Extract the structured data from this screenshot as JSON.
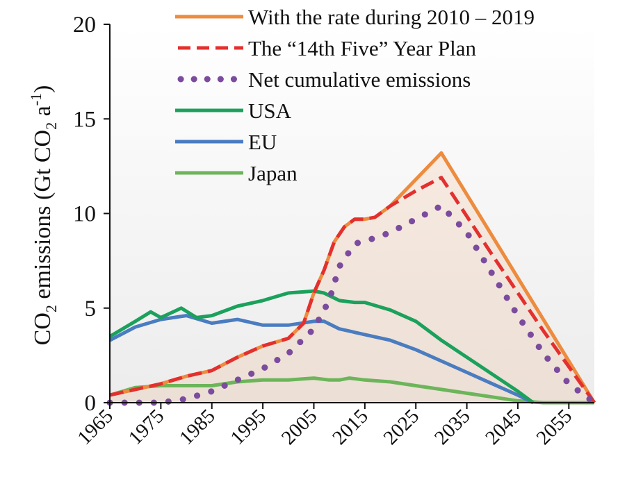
{
  "chart_data": {
    "type": "line",
    "ylabel": {
      "prefix": "CO",
      "sub": "2",
      "mid": " emissions (Gt CO",
      "sub2": "2",
      "mid2": " a",
      "sup": "-1",
      "suffix": ")"
    },
    "xlim": [
      1965,
      2060
    ],
    "ylim": [
      0,
      20
    ],
    "x_ticks": [
      1965,
      1975,
      1985,
      1995,
      2005,
      2015,
      2025,
      2035,
      2045,
      2055
    ],
    "y_ticks": [
      0,
      5,
      10,
      15,
      20
    ],
    "legend_position": "top",
    "series": [
      {
        "name": "With the rate during 2010 – 2019",
        "color": "#ED8B3E",
        "style": "solid",
        "filled": true,
        "x": [
          1965,
          1970,
          1975,
          1980,
          1985,
          1990,
          1995,
          2000,
          2003,
          2005,
          2007,
          2009,
          2011,
          2013,
          2015,
          2017,
          2020,
          2025,
          2030,
          2040,
          2050,
          2060
        ],
        "y": [
          0.4,
          0.7,
          1.0,
          1.4,
          1.7,
          2.4,
          3.0,
          3.4,
          4.2,
          5.8,
          7.0,
          8.5,
          9.3,
          9.7,
          9.7,
          9.8,
          10.4,
          11.8,
          13.2,
          8.8,
          4.4,
          0.0
        ]
      },
      {
        "name": "The “14th Five” Year Plan",
        "color": "#E3302E",
        "style": "dashed",
        "x": [
          1965,
          1970,
          1975,
          1980,
          1985,
          1990,
          1995,
          2000,
          2003,
          2005,
          2007,
          2009,
          2011,
          2013,
          2015,
          2017,
          2020,
          2025,
          2030,
          2040,
          2050,
          2060
        ],
        "y": [
          0.4,
          0.7,
          1.0,
          1.4,
          1.7,
          2.4,
          3.0,
          3.4,
          4.2,
          5.8,
          7.0,
          8.5,
          9.3,
          9.7,
          9.7,
          9.8,
          10.4,
          11.2,
          11.9,
          7.8,
          3.8,
          0.0
        ]
      },
      {
        "name": "Net cumulative emissions",
        "color": "#7B4B9E",
        "style": "dotted",
        "x": [
          1965,
          1970,
          1975,
          1980,
          1985,
          1990,
          1995,
          2000,
          2005,
          2008,
          2010,
          2013,
          2017,
          2020,
          2025,
          2030,
          2035,
          2040,
          2045,
          2050,
          2055,
          2060
        ],
        "y": [
          0.0,
          0.0,
          0.0,
          0.2,
          0.6,
          1.2,
          1.8,
          2.6,
          3.9,
          5.4,
          7.2,
          8.4,
          8.7,
          9.0,
          9.7,
          10.4,
          9.0,
          6.8,
          4.6,
          2.6,
          1.0,
          0.0
        ]
      },
      {
        "name": "USA",
        "color": "#1BA15C",
        "style": "solid",
        "x": [
          1965,
          1970,
          1973,
          1975,
          1979,
          1982,
          1985,
          1990,
          1995,
          2000,
          2005,
          2007,
          2010,
          2013,
          2015,
          2020,
          2025,
          2030,
          2035,
          2040,
          2045,
          2048
        ],
        "y": [
          3.5,
          4.3,
          4.8,
          4.5,
          5.0,
          4.5,
          4.6,
          5.1,
          5.4,
          5.8,
          5.9,
          5.8,
          5.4,
          5.3,
          5.3,
          4.9,
          4.3,
          3.3,
          2.4,
          1.5,
          0.6,
          0.0
        ]
      },
      {
        "name": "EU",
        "color": "#4A7CC0",
        "style": "solid",
        "x": [
          1965,
          1970,
          1975,
          1980,
          1985,
          1990,
          1995,
          2000,
          2005,
          2007,
          2010,
          2015,
          2020,
          2025,
          2030,
          2035,
          2040,
          2045,
          2048
        ],
        "y": [
          3.3,
          4.0,
          4.4,
          4.6,
          4.2,
          4.4,
          4.1,
          4.1,
          4.3,
          4.3,
          3.9,
          3.6,
          3.3,
          2.8,
          2.2,
          1.6,
          1.0,
          0.4,
          0.0
        ]
      },
      {
        "name": "Japan",
        "color": "#6CB55A",
        "style": "solid",
        "x": [
          1965,
          1970,
          1975,
          1980,
          1985,
          1990,
          1995,
          2000,
          2005,
          2008,
          2010,
          2012,
          2015,
          2020,
          2025,
          2030,
          2035,
          2040,
          2045,
          2050,
          2055,
          2060
        ],
        "y": [
          0.4,
          0.8,
          0.9,
          0.9,
          0.9,
          1.1,
          1.2,
          1.2,
          1.3,
          1.2,
          1.2,
          1.3,
          1.2,
          1.1,
          0.9,
          0.7,
          0.5,
          0.3,
          0.1,
          0.0,
          0.0,
          0.0
        ]
      }
    ]
  }
}
